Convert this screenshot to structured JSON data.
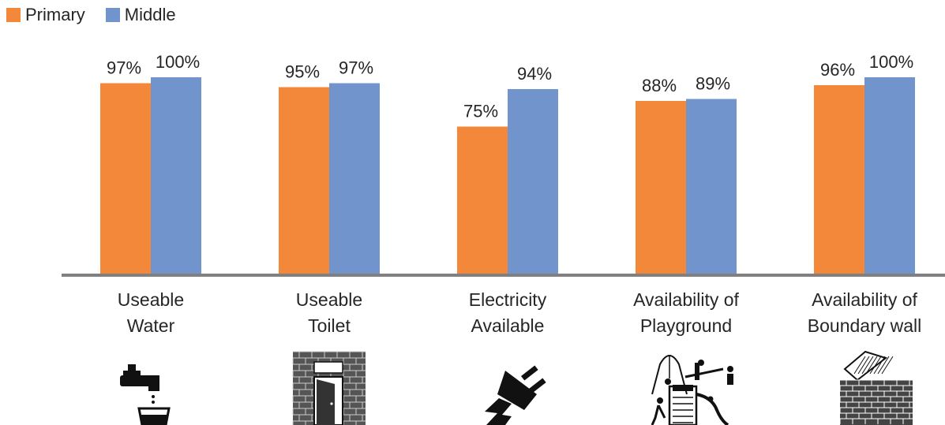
{
  "colors": {
    "primary": "#F4883A",
    "middle": "#7094CB",
    "axis": "#808080",
    "text": "#262626"
  },
  "legend": {
    "position": "top-left",
    "items": [
      "Primary",
      "Middle"
    ]
  },
  "chart_data": {
    "type": "bar",
    "categories": [
      [
        "Useable",
        "Water"
      ],
      [
        "Useable",
        "Toilet"
      ],
      [
        "Electricity",
        "Available"
      ],
      [
        "Availability of",
        "Playground"
      ],
      [
        "Availability of",
        "Boundary wall"
      ]
    ],
    "series": [
      {
        "name": "Primary",
        "values": [
          97,
          95,
          75,
          88,
          96
        ],
        "labels": [
          "97%",
          "95%",
          "75%",
          "88%",
          "96%"
        ]
      },
      {
        "name": "Middle",
        "values": [
          100,
          97,
          94,
          89,
          100
        ],
        "labels": [
          "100%",
          "97%",
          "94%",
          "89%",
          "100%"
        ]
      }
    ],
    "ylim": [
      0,
      100
    ],
    "grid": false,
    "icons": [
      "water-tap-icon",
      "toilet-icon",
      "electric-plug-icon",
      "playground-icon",
      "boundary-wall-icon"
    ]
  }
}
